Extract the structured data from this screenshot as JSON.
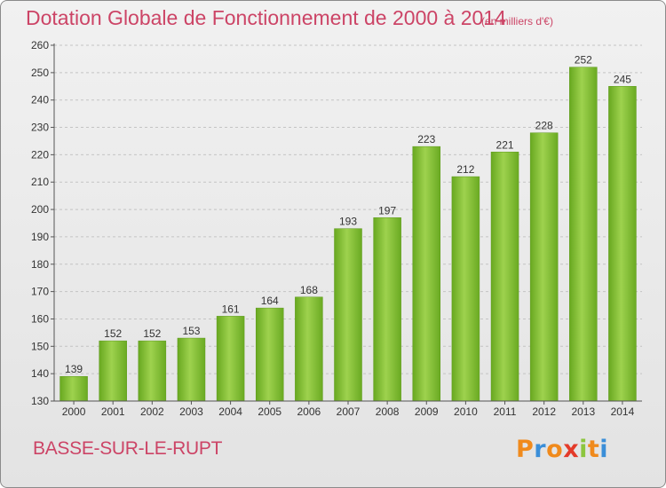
{
  "chart_data": {
    "type": "bar",
    "title": "Dotation Globale de Fonctionnement de 2000 à 2014",
    "subtitle": "(en milliers d'€)",
    "xlabel": "",
    "ylabel": "",
    "categories": [
      "2000",
      "2001",
      "2002",
      "2003",
      "2004",
      "2005",
      "2006",
      "2007",
      "2008",
      "2009",
      "2010",
      "2011",
      "2012",
      "2013",
      "2014"
    ],
    "values": [
      139,
      152,
      152,
      153,
      161,
      164,
      168,
      193,
      197,
      223,
      212,
      221,
      228,
      252,
      245
    ],
    "ylim": [
      130,
      260
    ],
    "yticks": [
      130,
      140,
      150,
      160,
      170,
      180,
      190,
      200,
      210,
      220,
      230,
      240,
      250,
      260
    ],
    "grid": "horizontal-dashed",
    "bar_color": "#7cba2d"
  },
  "footer": {
    "city": "BASSE-SUR-LE-RUPT",
    "logo": [
      "P",
      "r",
      "o",
      "x",
      "i",
      "t",
      "i"
    ],
    "logo_colors": [
      "#f08a1c",
      "#3a8ed8",
      "#f08a1c",
      "#e43b2a",
      "#8cc63f",
      "#f08a1c",
      "#3a8ed8"
    ]
  }
}
